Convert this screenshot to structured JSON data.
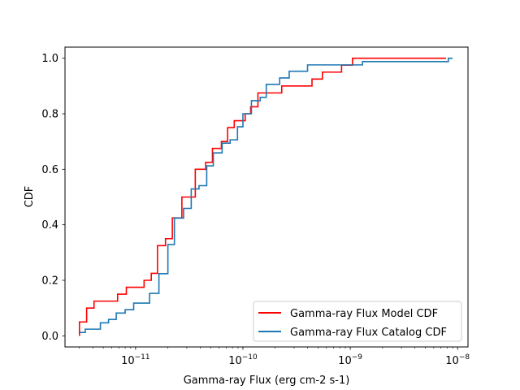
{
  "chart_data": {
    "type": "line",
    "title": "",
    "xlabel": "Gamma-ray Flux (erg cm-2 s-1)",
    "ylabel": "CDF",
    "xscale": "log",
    "xlim": [
      2.2e-12,
      1.25e-08
    ],
    "ylim": [
      -0.04,
      1.04
    ],
    "x_ticks": [
      {
        "value": 1e-11,
        "base": "10",
        "exp": "−11"
      },
      {
        "value": 1e-10,
        "base": "10",
        "exp": "−10"
      },
      {
        "value": 1e-09,
        "base": "10",
        "exp": "−9"
      },
      {
        "value": 1e-08,
        "base": "10",
        "exp": "−8"
      }
    ],
    "y_ticks": [
      {
        "value": 0.0,
        "label": "0.0"
      },
      {
        "value": 0.2,
        "label": "0.2"
      },
      {
        "value": 0.4,
        "label": "0.4"
      },
      {
        "value": 0.6,
        "label": "0.6"
      },
      {
        "value": 0.8,
        "label": "0.8"
      },
      {
        "value": 1.0,
        "label": "1.0"
      }
    ],
    "grid": false,
    "legend": "lower-right",
    "series": [
      {
        "name": "Gamma-ray Flux Model CDF",
        "color": "#ff0000",
        "step": "post",
        "points": [
          [
            3e-12,
            0.0
          ],
          [
            3e-12,
            0.05
          ],
          [
            3.5e-12,
            0.1
          ],
          [
            4.1e-12,
            0.125
          ],
          [
            6.8e-12,
            0.15
          ],
          [
            8.2e-12,
            0.175
          ],
          [
            1.2e-11,
            0.2
          ],
          [
            1.4e-11,
            0.225
          ],
          [
            1.6e-11,
            0.325
          ],
          [
            1.9e-11,
            0.35
          ],
          [
            2.2e-11,
            0.425
          ],
          [
            2.7e-11,
            0.5
          ],
          [
            3.6e-11,
            0.6
          ],
          [
            4.5e-11,
            0.625
          ],
          [
            5.2e-11,
            0.675
          ],
          [
            6.3e-11,
            0.7
          ],
          [
            7.2e-11,
            0.75
          ],
          [
            8.3e-11,
            0.775
          ],
          [
            1.05e-10,
            0.8
          ],
          [
            1.18e-10,
            0.825
          ],
          [
            1.38e-10,
            0.875
          ],
          [
            2.3e-10,
            0.9
          ],
          [
            4.4e-10,
            0.925
          ],
          [
            5.5e-10,
            0.95
          ],
          [
            8.3e-10,
            0.975
          ],
          [
            1.05e-09,
            1.0
          ],
          [
            7.8e-09,
            1.0
          ]
        ]
      },
      {
        "name": "Gamma-ray Flux Catalog CDF",
        "color": "#1f77b4",
        "step": "post",
        "points": [
          [
            3e-12,
            0.012
          ],
          [
            3.4e-12,
            0.024
          ],
          [
            4.7e-12,
            0.047
          ],
          [
            5.6e-12,
            0.059
          ],
          [
            6.6e-12,
            0.082
          ],
          [
            8e-12,
            0.094
          ],
          [
            9.6e-12,
            0.118
          ],
          [
            1.35e-11,
            0.153
          ],
          [
            1.65e-11,
            0.224
          ],
          [
            2e-11,
            0.329
          ],
          [
            2.3e-11,
            0.424
          ],
          [
            2.8e-11,
            0.459
          ],
          [
            3.3e-11,
            0.529
          ],
          [
            3.9e-11,
            0.541
          ],
          [
            4.6e-11,
            0.612
          ],
          [
            5.3e-11,
            0.659
          ],
          [
            6.4e-11,
            0.694
          ],
          [
            7.6e-11,
            0.706
          ],
          [
            8.9e-11,
            0.753
          ],
          [
            1e-10,
            0.8
          ],
          [
            1.2e-10,
            0.847
          ],
          [
            1.45e-10,
            0.859
          ],
          [
            1.65e-10,
            0.906
          ],
          [
            2.2e-10,
            0.929
          ],
          [
            2.7e-10,
            0.953
          ],
          [
            4e-10,
            0.976
          ],
          [
            1.3e-09,
            0.988
          ],
          [
            8.2e-09,
            1.0
          ],
          [
            9e-09,
            1.0
          ]
        ]
      }
    ]
  }
}
